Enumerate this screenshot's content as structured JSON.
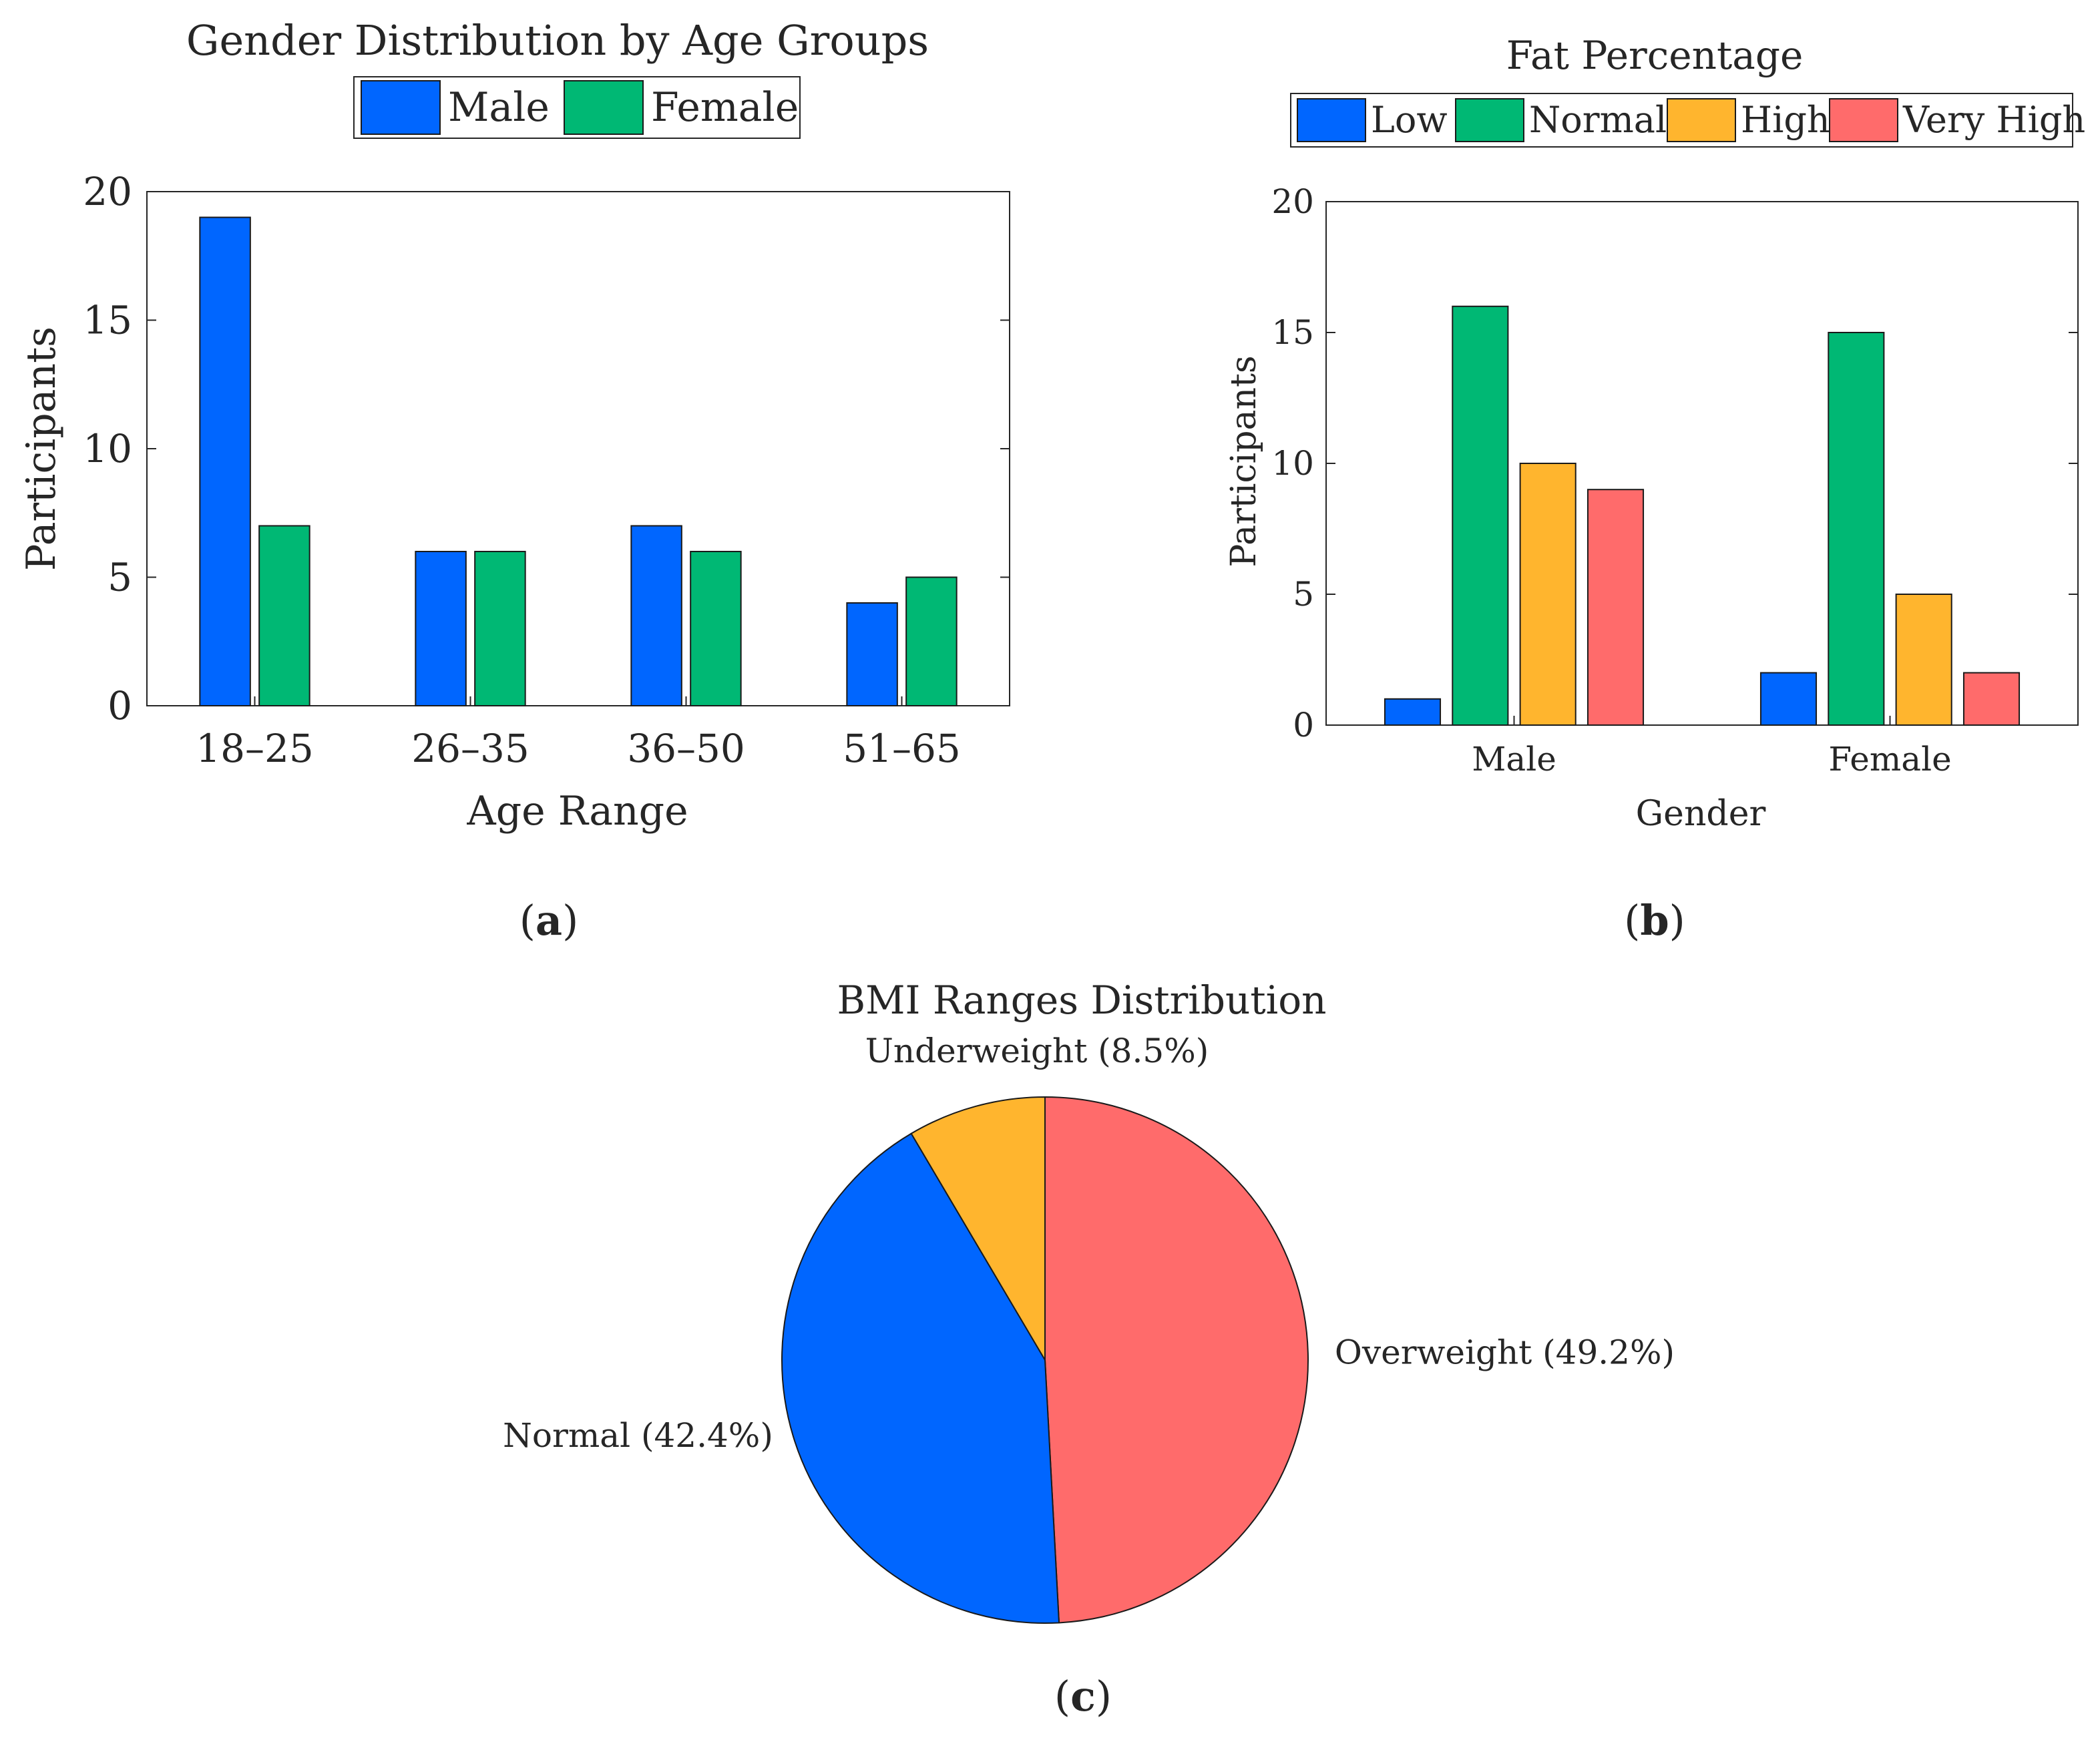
{
  "chart_data": [
    {
      "type": "bar",
      "panel": "a",
      "title": "Gender Distribution by Age Groups",
      "xlabel": "Age Range",
      "ylabel": "Participants",
      "categories": [
        "18–25",
        "26–35",
        "36–50",
        "51–65"
      ],
      "series": [
        {
          "name": "Male",
          "values": [
            19,
            6,
            7,
            4
          ],
          "color": "#0066ff"
        },
        {
          "name": "Female",
          "values": [
            7,
            6,
            6,
            5
          ],
          "color": "#00b874"
        }
      ],
      "ylim": [
        0,
        20
      ],
      "yticks": [
        0,
        5,
        10,
        15,
        20
      ],
      "legend_position": "top-center"
    },
    {
      "type": "bar",
      "panel": "b",
      "title": "Fat Percentage",
      "xlabel": "Gender",
      "ylabel": "Participants",
      "categories": [
        "Male",
        "Female"
      ],
      "series": [
        {
          "name": "Low",
          "values": [
            1,
            2
          ],
          "color": "#0066ff"
        },
        {
          "name": "Normal",
          "values": [
            16,
            15
          ],
          "color": "#00b874"
        },
        {
          "name": "High",
          "values": [
            10,
            5
          ],
          "color": "#ffb52e"
        },
        {
          "name": "Very High",
          "values": [
            9,
            2
          ],
          "color": "#ff6b6b"
        }
      ],
      "ylim": [
        0,
        20
      ],
      "yticks": [
        0,
        5,
        10,
        15,
        20
      ],
      "legend_position": "top-center"
    },
    {
      "type": "pie",
      "panel": "c",
      "title": "BMI Ranges Distribution",
      "slices": [
        {
          "name": "Underweight",
          "value": 8.5,
          "label": "Underweight (8.5%)",
          "color": "#ffb52e"
        },
        {
          "name": "Overweight",
          "value": 49.2,
          "label": "Overweight (49.2%)",
          "color": "#ff6b6b"
        },
        {
          "name": "Normal",
          "value": 42.4,
          "label": "Normal (42.4%)",
          "color": "#0066ff"
        }
      ]
    }
  ],
  "panels": {
    "a": {
      "open": "(",
      "letter": "a",
      "close": ")"
    },
    "b": {
      "open": "(",
      "letter": "b",
      "close": ")"
    },
    "c": {
      "open": "(",
      "letter": "c",
      "close": ")"
    }
  }
}
